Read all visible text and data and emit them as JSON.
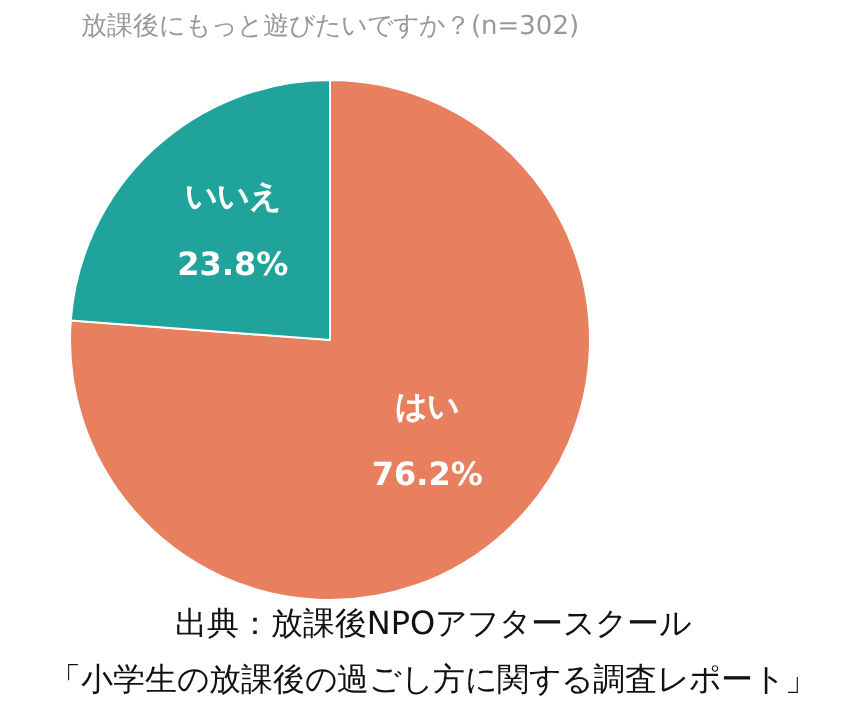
{
  "chart_data": {
    "type": "pie",
    "title": "放課後にもっと遊びたいですか？(n=302)",
    "categories": [
      "はい",
      "いいえ"
    ],
    "values": [
      76.2,
      23.8
    ],
    "value_labels": [
      "76.2%",
      "23.8%"
    ],
    "colors": [
      "#e8805f",
      "#1fa39a"
    ],
    "annotations": [
      "出典：放課後NPOアフタースクール",
      "「小学生の放課後の過ごし方に関する調査レポート」"
    ]
  }
}
